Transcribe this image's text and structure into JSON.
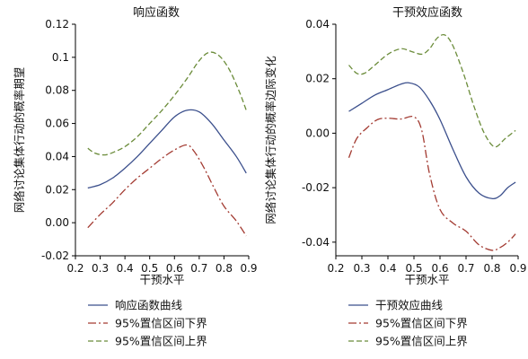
{
  "chart_data": [
    {
      "type": "line",
      "title": "响应函数",
      "xlabel": "干预水平",
      "ylabel": "网络讨论集体行动的概率期望",
      "xlim": [
        0.2,
        0.9
      ],
      "ylim": [
        -0.02,
        0.12
      ],
      "xticks": [
        "0.2",
        "0.3",
        "0.4",
        "0.5",
        "0.6",
        "0.7",
        "0.8",
        "0.9"
      ],
      "yticks": [
        "-0.02",
        "0.00",
        "0.02",
        "0.04",
        "0.06",
        "0.08",
        "0.1",
        "0.12"
      ],
      "xtick_values": [
        0.2,
        0.3,
        0.4,
        0.5,
        0.6,
        0.7,
        0.8,
        0.9
      ],
      "ytick_values": [
        -0.02,
        0,
        0.02,
        0.04,
        0.06,
        0.08,
        0.1,
        0.12
      ],
      "legend_position": "bottom",
      "series": [
        {
          "name": "响应函数曲线",
          "style": "solid",
          "color": "#3b4f8c",
          "x": [
            0.25,
            0.3,
            0.35,
            0.4,
            0.45,
            0.5,
            0.55,
            0.6,
            0.65,
            0.7,
            0.75,
            0.8,
            0.85,
            0.89
          ],
          "y": [
            0.021,
            0.023,
            0.027,
            0.033,
            0.04,
            0.048,
            0.056,
            0.064,
            0.068,
            0.067,
            0.06,
            0.05,
            0.04,
            0.03
          ]
        },
        {
          "name": "95%置信区间下界",
          "style": "dashdot",
          "color": "#a33b32",
          "x": [
            0.25,
            0.3,
            0.35,
            0.4,
            0.45,
            0.5,
            0.55,
            0.6,
            0.65,
            0.68,
            0.72,
            0.76,
            0.8,
            0.85,
            0.89
          ],
          "y": [
            -0.003,
            0.005,
            0.012,
            0.02,
            0.027,
            0.033,
            0.039,
            0.044,
            0.047,
            0.043,
            0.033,
            0.021,
            0.01,
            0.001,
            -0.008
          ]
        },
        {
          "name": "95%置信区间上界",
          "style": "dashed",
          "color": "#6b8c3a",
          "x": [
            0.25,
            0.28,
            0.32,
            0.36,
            0.4,
            0.45,
            0.5,
            0.55,
            0.6,
            0.65,
            0.7,
            0.74,
            0.78,
            0.82,
            0.86,
            0.89
          ],
          "y": [
            0.045,
            0.042,
            0.041,
            0.043,
            0.046,
            0.052,
            0.06,
            0.068,
            0.077,
            0.087,
            0.098,
            0.103,
            0.101,
            0.093,
            0.08,
            0.068
          ]
        }
      ]
    },
    {
      "type": "line",
      "title": "干预效应函数",
      "xlabel": "干预水平",
      "ylabel": "网络讨论集体行动的概率边际变化",
      "xlim": [
        0.2,
        0.9
      ],
      "ylim": [
        -0.045,
        0.04
      ],
      "xticks": [
        "0.2",
        "0.3",
        "0.4",
        "0.5",
        "0.6",
        "0.7",
        "0.8",
        "0.9"
      ],
      "yticks": [
        "-0.04",
        "-0.02",
        "0.00",
        "0.02",
        "0.04"
      ],
      "xtick_values": [
        0.2,
        0.3,
        0.4,
        0.5,
        0.6,
        0.7,
        0.8,
        0.9
      ],
      "ytick_values": [
        -0.04,
        -0.02,
        0,
        0.02,
        0.04
      ],
      "legend_position": "bottom",
      "series": [
        {
          "name": "干预效应曲线",
          "style": "solid",
          "color": "#3b4f8c",
          "x": [
            0.25,
            0.3,
            0.35,
            0.4,
            0.45,
            0.48,
            0.52,
            0.56,
            0.6,
            0.65,
            0.7,
            0.75,
            0.8,
            0.83,
            0.86,
            0.89
          ],
          "y": [
            0.008,
            0.011,
            0.014,
            0.016,
            0.018,
            0.0185,
            0.017,
            0.012,
            0.005,
            -0.006,
            -0.016,
            -0.022,
            -0.024,
            -0.023,
            -0.02,
            -0.018
          ]
        },
        {
          "name": "95%置信区间下界",
          "style": "dashdot",
          "color": "#a33b32",
          "x": [
            0.25,
            0.28,
            0.32,
            0.36,
            0.4,
            0.45,
            0.5,
            0.53,
            0.56,
            0.6,
            0.65,
            0.7,
            0.75,
            0.8,
            0.83,
            0.86,
            0.89
          ],
          "y": [
            -0.009,
            -0.002,
            0.002,
            0.005,
            0.0055,
            0.0052,
            0.006,
            0.001,
            -0.015,
            -0.028,
            -0.033,
            -0.036,
            -0.041,
            -0.043,
            -0.042,
            -0.04,
            -0.037
          ]
        },
        {
          "name": "95%置信区间上界",
          "style": "dashed",
          "color": "#6b8c3a",
          "x": [
            0.25,
            0.28,
            0.31,
            0.35,
            0.4,
            0.45,
            0.49,
            0.53,
            0.56,
            0.59,
            0.62,
            0.65,
            0.69,
            0.73,
            0.77,
            0.81,
            0.85,
            0.89
          ],
          "y": [
            0.025,
            0.022,
            0.022,
            0.025,
            0.029,
            0.031,
            0.03,
            0.029,
            0.031,
            0.035,
            0.036,
            0.032,
            0.022,
            0.01,
            0.0,
            -0.005,
            -0.002,
            0.001
          ]
        }
      ]
    }
  ]
}
